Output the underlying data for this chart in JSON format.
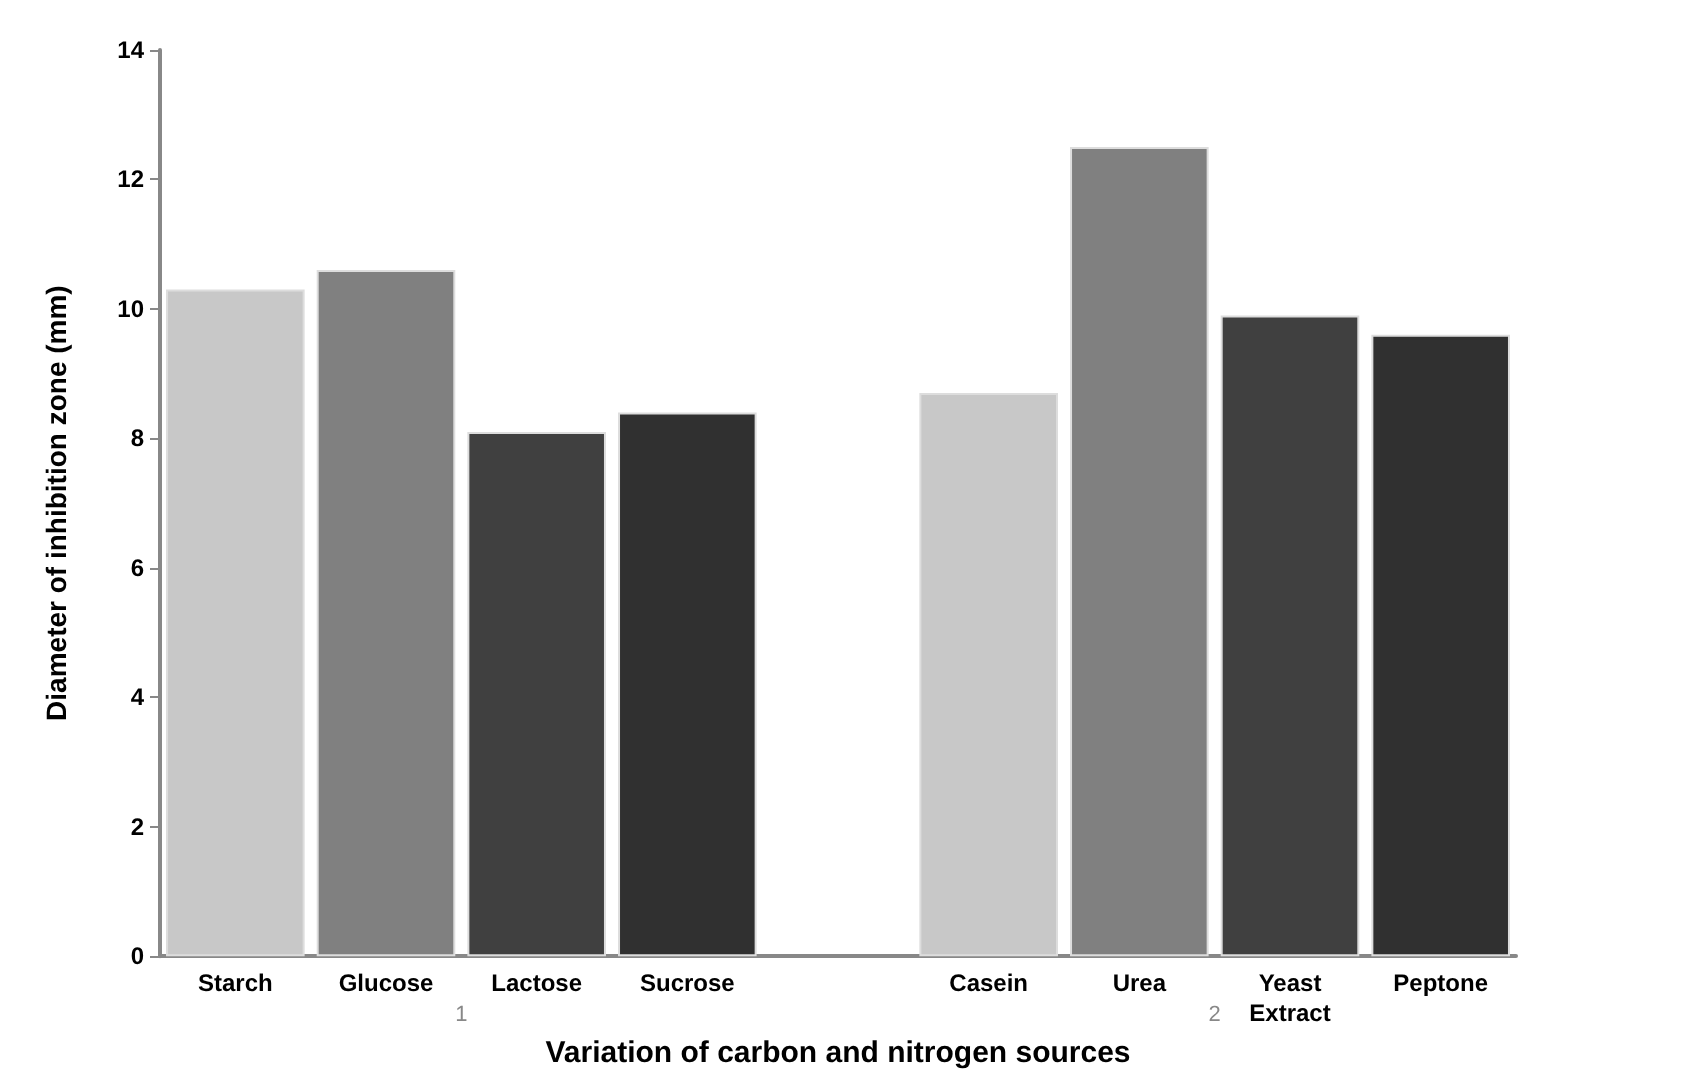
{
  "chart_data": {
    "type": "bar",
    "xlabel": "Variation of carbon and nitrogen sources",
    "ylabel": "Diameter of inhibition zone (mm)",
    "categories": [
      "Starch",
      "Glucose",
      "Lactose",
      "Sucrose",
      null,
      "Casein",
      "Urea",
      "Yeast\nExtract",
      "Peptone"
    ],
    "values": [
      10.3,
      10.6,
      8.1,
      8.4,
      null,
      8.7,
      12.5,
      9.9,
      9.6
    ],
    "colors": [
      "#c8c8c8",
      "#808080",
      "#404040",
      "#303030",
      null,
      "#c8c8c8",
      "#808080",
      "#404040",
      "#303030"
    ],
    "annotations": [
      "1",
      "2"
    ],
    "ylim": [
      0,
      14
    ],
    "yticks": [
      0,
      2,
      4,
      6,
      8,
      10,
      12,
      14
    ],
    "grid": false
  }
}
